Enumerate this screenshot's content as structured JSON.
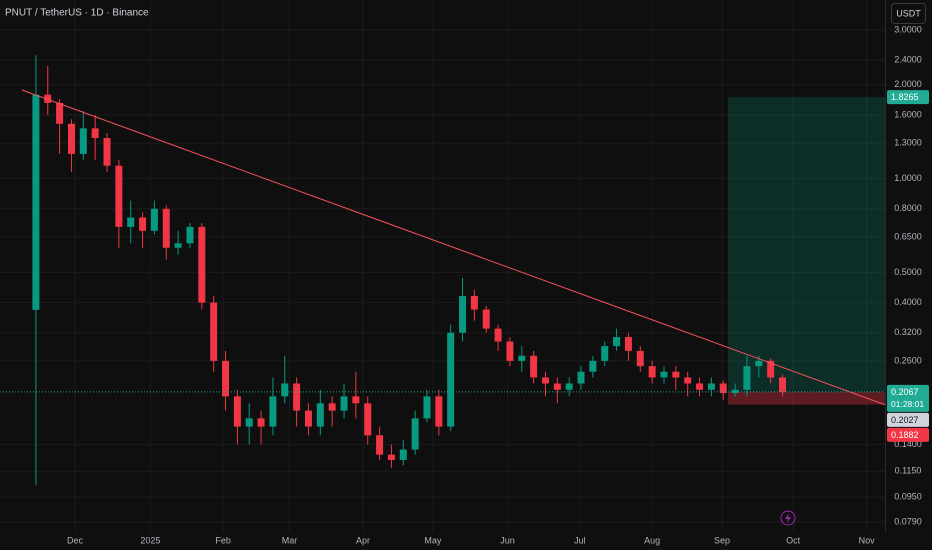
{
  "chart_data": {
    "type": "candlestick",
    "title": "PNUT / TetherUS · 1D · Binance",
    "currency": "USDT",
    "log_scale": true,
    "grid": true,
    "up_color": "#089981",
    "down_color": "#f23645",
    "categories": [
      null,
      null,
      null,
      null,
      null,
      null,
      null,
      null,
      null,
      null,
      null,
      null,
      null,
      null,
      null,
      null,
      null,
      null,
      null,
      null,
      null,
      null,
      null,
      null,
      null,
      null,
      null,
      null,
      null,
      null,
      null,
      null,
      null,
      null,
      null,
      null,
      null,
      null,
      null,
      null,
      null,
      null,
      null,
      null,
      null,
      null,
      null,
      null,
      null,
      null,
      null,
      null,
      null,
      null,
      null,
      null,
      null,
      null,
      null,
      null,
      null,
      null,
      null,
      null
    ],
    "open": [
      0.379,
      1.86,
      1.75,
      1.5,
      1.2,
      1.45,
      1.35,
      1.1,
      0.7,
      0.75,
      0.68,
      0.8,
      0.6,
      0.62,
      0.7,
      0.4,
      0.26,
      0.2,
      0.16,
      0.17,
      0.16,
      0.2,
      0.22,
      0.18,
      0.16,
      0.19,
      0.18,
      0.2,
      0.19,
      0.15,
      0.13,
      0.125,
      0.135,
      0.17,
      0.2,
      0.16,
      0.32,
      0.42,
      0.38,
      0.33,
      0.3,
      0.26,
      0.27,
      0.23,
      0.22,
      0.21,
      0.22,
      0.24,
      0.26,
      0.29,
      0.31,
      0.28,
      0.25,
      0.23,
      0.24,
      0.23,
      0.22,
      0.21,
      0.22,
      0.205,
      0.21,
      0.25,
      0.26,
      0.23
    ],
    "high": [
      2.49,
      2.3,
      1.8,
      1.55,
      1.65,
      1.6,
      1.4,
      1.15,
      0.85,
      0.78,
      0.85,
      0.82,
      0.68,
      0.72,
      0.72,
      0.42,
      0.28,
      0.21,
      0.19,
      0.18,
      0.23,
      0.27,
      0.23,
      0.19,
      0.21,
      0.2,
      0.22,
      0.24,
      0.2,
      0.16,
      0.14,
      0.145,
      0.18,
      0.21,
      0.21,
      0.34,
      0.48,
      0.44,
      0.39,
      0.34,
      0.31,
      0.29,
      0.28,
      0.24,
      0.23,
      0.23,
      0.25,
      0.27,
      0.3,
      0.33,
      0.32,
      0.29,
      0.26,
      0.25,
      0.25,
      0.24,
      0.23,
      0.23,
      0.225,
      0.22,
      0.27,
      0.27,
      0.265,
      0.235
    ],
    "low": [
      0.104,
      1.6,
      1.2,
      1.05,
      1.15,
      1.15,
      1.05,
      0.6,
      0.62,
      0.6,
      0.66,
      0.55,
      0.57,
      0.6,
      0.38,
      0.24,
      0.18,
      0.14,
      0.14,
      0.14,
      0.15,
      0.19,
      0.16,
      0.15,
      0.15,
      0.16,
      0.17,
      0.17,
      0.14,
      0.125,
      0.118,
      0.12,
      0.13,
      0.165,
      0.15,
      0.155,
      0.3,
      0.35,
      0.32,
      0.28,
      0.25,
      0.24,
      0.22,
      0.2,
      0.19,
      0.2,
      0.21,
      0.23,
      0.25,
      0.28,
      0.26,
      0.24,
      0.22,
      0.22,
      0.21,
      0.2,
      0.2,
      0.2,
      0.195,
      0.2,
      0.2,
      0.23,
      0.22,
      0.2
    ],
    "close": [
      1.86,
      1.75,
      1.5,
      1.2,
      1.45,
      1.35,
      1.1,
      0.7,
      0.75,
      0.68,
      0.8,
      0.6,
      0.62,
      0.7,
      0.4,
      0.26,
      0.2,
      0.16,
      0.17,
      0.16,
      0.2,
      0.22,
      0.18,
      0.16,
      0.19,
      0.18,
      0.2,
      0.19,
      0.15,
      0.13,
      0.125,
      0.135,
      0.17,
      0.2,
      0.16,
      0.32,
      0.42,
      0.38,
      0.33,
      0.3,
      0.26,
      0.27,
      0.23,
      0.22,
      0.21,
      0.22,
      0.24,
      0.26,
      0.29,
      0.31,
      0.28,
      0.25,
      0.23,
      0.24,
      0.23,
      0.22,
      0.21,
      0.22,
      0.205,
      0.21,
      0.25,
      0.26,
      0.23,
      0.2067
    ],
    "xlim": [
      -3.03,
      71.65
    ],
    "xticks": [
      {
        "value": 3.3,
        "label": "Dec"
      },
      {
        "value": 9.66,
        "label": "2025"
      },
      {
        "value": 15.8,
        "label": "Feb"
      },
      {
        "value": 21.4,
        "label": "Mar"
      },
      {
        "value": 27.6,
        "label": "Apr"
      },
      {
        "value": 33.5,
        "label": "May"
      },
      {
        "value": 39.8,
        "label": "Jun"
      },
      {
        "value": 45.9,
        "label": "Jul"
      },
      {
        "value": 52.0,
        "label": "Aug"
      },
      {
        "value": 57.9,
        "label": "Sep"
      },
      {
        "value": 63.9,
        "label": "Oct"
      },
      {
        "value": 70.1,
        "label": "Nov"
      }
    ],
    "ylim": [
      0.0734,
      3.744
    ],
    "yticks": [
      {
        "value": 3,
        "label": "3.0000"
      },
      {
        "value": 2.4,
        "label": "2.4000"
      },
      {
        "value": 2,
        "label": "2.0000"
      },
      {
        "value": 1.6,
        "label": "1.6000"
      },
      {
        "value": 1.3,
        "label": "1.3000"
      },
      {
        "value": 1,
        "label": "1.0000"
      },
      {
        "value": 0.8,
        "label": "0.8000"
      },
      {
        "value": 0.65,
        "label": "0.6500"
      },
      {
        "value": 0.5,
        "label": "0.5000"
      },
      {
        "value": 0.4,
        "label": "0.4000"
      },
      {
        "value": 0.32,
        "label": "0.3200"
      },
      {
        "value": 0.26,
        "label": "0.2600"
      },
      {
        "value": 0.14,
        "label": "0.1400"
      },
      {
        "value": 0.115,
        "label": "0.1150"
      },
      {
        "value": 0.095,
        "label": "0.0950"
      },
      {
        "value": 0.079,
        "label": "0.0790"
      }
    ],
    "trendline": {
      "x": [
        -1.18,
        71.65
      ],
      "y": [
        1.925,
        0.188
      ],
      "color": "#f7525f"
    },
    "position": {
      "x": [
        58.4,
        71.65
      ],
      "entry": 0.2067,
      "target": 1.8265,
      "stop": 0.1882
    },
    "price_tags": [
      {
        "value": 1.8265,
        "color": "#22ab94"
      },
      {
        "value": 0.2067,
        "color": "#22ab94",
        "countdown": "01:28:01"
      },
      {
        "value": 0.2027,
        "color": "#d1d4dc"
      },
      {
        "value": 0.1882,
        "color": "#f23645"
      }
    ]
  }
}
